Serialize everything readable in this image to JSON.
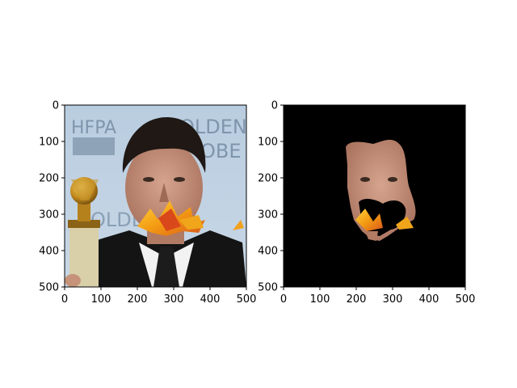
{
  "chart_data": [
    {
      "type": "image",
      "panel": "left",
      "image": "photo-of-man-in-tuxedo-holding-golden-globe-trophy-with-autumn-leaves-over-mouth",
      "xlim": [
        0,
        500
      ],
      "ylim": [
        500,
        0
      ],
      "xticks": [
        "0",
        "100",
        "200",
        "300",
        "400",
        "500"
      ],
      "yticks": [
        "0",
        "100",
        "200",
        "300",
        "400",
        "500"
      ],
      "background_text": [
        "HFPA",
        "OLDEN",
        "OBE",
        "OLDEN"
      ]
    },
    {
      "type": "image",
      "panel": "right",
      "image": "segmented-face-mask-on-black-background",
      "xlim": [
        0,
        500
      ],
      "ylim": [
        500,
        0
      ],
      "xticks": [
        "0",
        "100",
        "200",
        "300",
        "400",
        "500"
      ],
      "yticks": [
        "0",
        "100",
        "200",
        "300",
        "400",
        "500"
      ]
    }
  ]
}
